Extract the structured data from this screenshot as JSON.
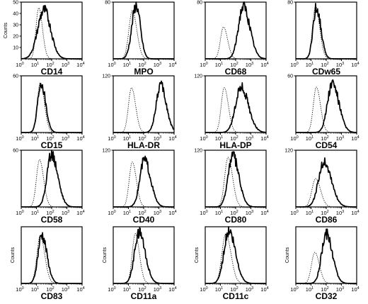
{
  "chart_data": [
    {
      "type": "histogram",
      "title": "CD14",
      "ylabel": "Counts",
      "y_ticks": [
        "10",
        "20",
        "30",
        "40",
        "50"
      ],
      "ymax": 50,
      "x_tick_exponents": [
        "0",
        "1",
        "2",
        "3",
        "4"
      ],
      "xscale": "log",
      "xlim": [
        0,
        4
      ],
      "series": [
        {
          "name": "",
          "style": "dotted",
          "peak": 1.15,
          "width": 0.18,
          "height": 45
        },
        {
          "name": "",
          "style": "solid",
          "peak": 1.5,
          "width": 0.42,
          "height": 43,
          "tail": 1.05
        }
      ]
    },
    {
      "type": "histogram",
      "title": "MPO",
      "ylabel": "",
      "y_ticks": [
        "80"
      ],
      "ymax": 80,
      "x_tick_exponents": [
        "0",
        "1",
        "2",
        "3",
        "4"
      ],
      "xscale": "log",
      "xlim": [
        0,
        4
      ],
      "series": [
        {
          "name": "",
          "style": "dotted",
          "peak": 1.25,
          "width": 0.22,
          "height": 68
        },
        {
          "name": "",
          "style": "solid",
          "peak": 1.5,
          "width": 0.28,
          "height": 75,
          "tail": 1.0
        }
      ]
    },
    {
      "type": "histogram",
      "title": "CD68",
      "ylabel": "",
      "y_ticks": [
        "80"
      ],
      "ymax": 80,
      "x_tick_exponents": [
        "0",
        "1",
        "2",
        "3",
        "4"
      ],
      "xscale": "log",
      "xlim": [
        0,
        4
      ],
      "series": [
        {
          "name": "",
          "style": "dotted",
          "peak": 1.2,
          "width": 0.2,
          "height": 45
        },
        {
          "name": "",
          "style": "solid",
          "peak": 2.5,
          "width": 0.32,
          "height": 74
        }
      ]
    },
    {
      "type": "histogram",
      "title": "CDw65",
      "ylabel": "",
      "y_ticks": [
        "80"
      ],
      "ymax": 80,
      "x_tick_exponents": [
        "0",
        "1",
        "2",
        "3",
        "4"
      ],
      "xscale": "log",
      "xlim": [
        0,
        4
      ],
      "series": [
        {
          "name": "",
          "style": "dotted",
          "peak": 1.3,
          "width": 0.2,
          "height": 74
        },
        {
          "name": "",
          "style": "solid",
          "peak": 1.35,
          "width": 0.22,
          "height": 72
        }
      ]
    },
    {
      "type": "histogram",
      "title": "CD15",
      "ylabel": "",
      "y_ticks": [
        "60"
      ],
      "ymax": 60,
      "x_tick_exponents": [
        "0",
        "1",
        "2",
        "3",
        "4"
      ],
      "xscale": "log",
      "xlim": [
        0,
        4
      ],
      "series": [
        {
          "name": "",
          "style": "dotted",
          "peak": 1.25,
          "width": 0.2,
          "height": 53
        },
        {
          "name": "",
          "style": "solid",
          "peak": 1.3,
          "width": 0.22,
          "height": 54
        }
      ]
    },
    {
      "type": "histogram",
      "title": "HLA-DR",
      "ylabel": "",
      "y_ticks": [
        "120"
      ],
      "ymax": 120,
      "x_tick_exponents": [
        "0",
        "1",
        "2",
        "3",
        "4"
      ],
      "xscale": "log",
      "xlim": [
        0,
        4
      ],
      "series": [
        {
          "name": "",
          "style": "dotted",
          "peak": 1.2,
          "width": 0.2,
          "height": 95
        },
        {
          "name": "",
          "style": "solid",
          "peak": 3.1,
          "width": 0.28,
          "height": 100
        }
      ]
    },
    {
      "type": "histogram",
      "title": "HLA-DP",
      "ylabel": "",
      "y_ticks": [
        "120"
      ],
      "ymax": 120,
      "x_tick_exponents": [
        "0",
        "1",
        "2",
        "3",
        "4"
      ],
      "xscale": "log",
      "xlim": [
        0,
        4
      ],
      "series": [
        {
          "name": "",
          "style": "dotted",
          "peak": 1.25,
          "width": 0.2,
          "height": 95
        },
        {
          "name": "",
          "style": "solid",
          "peak": 2.35,
          "width": 0.36,
          "height": 96
        }
      ]
    },
    {
      "type": "histogram",
      "title": "CD54",
      "ylabel": "",
      "y_ticks": [
        "60"
      ],
      "ymax": 60,
      "x_tick_exponents": [
        "0",
        "1",
        "2",
        "3",
        "4"
      ],
      "xscale": "log",
      "xlim": [
        0,
        4
      ],
      "series": [
        {
          "name": "",
          "style": "dotted",
          "peak": 1.35,
          "width": 0.2,
          "height": 48
        },
        {
          "name": "",
          "style": "solid",
          "peak": 2.4,
          "width": 0.32,
          "height": 52
        }
      ]
    },
    {
      "type": "histogram",
      "title": "CD58",
      "ylabel": "",
      "y_ticks": [
        "60"
      ],
      "ymax": 60,
      "x_tick_exponents": [
        "0",
        "1",
        "2",
        "3",
        "4"
      ],
      "xscale": "log",
      "xlim": [
        0,
        4
      ],
      "series": [
        {
          "name": "",
          "style": "dotted",
          "peak": 1.2,
          "width": 0.2,
          "height": 50
        },
        {
          "name": "",
          "style": "solid",
          "peak": 2.0,
          "width": 0.3,
          "height": 56
        }
      ]
    },
    {
      "type": "histogram",
      "title": "CD40",
      "ylabel": "",
      "y_ticks": [
        "120"
      ],
      "ymax": 120,
      "x_tick_exponents": [
        "0",
        "1",
        "2",
        "3",
        "4"
      ],
      "xscale": "log",
      "xlim": [
        0,
        4
      ],
      "series": [
        {
          "name": "",
          "style": "dotted",
          "peak": 1.25,
          "width": 0.2,
          "height": 95
        },
        {
          "name": "",
          "style": "solid",
          "peak": 2.05,
          "width": 0.3,
          "height": 100
        }
      ]
    },
    {
      "type": "histogram",
      "title": "CD80",
      "ylabel": "",
      "y_ticks": [
        "120"
      ],
      "ymax": 120,
      "x_tick_exponents": [
        "0",
        "1",
        "2",
        "3",
        "4"
      ],
      "xscale": "log",
      "xlim": [
        0,
        4
      ],
      "series": [
        {
          "name": "",
          "style": "dotted",
          "peak": 1.5,
          "width": 0.22,
          "height": 105
        },
        {
          "name": "",
          "style": "solid",
          "peak": 1.8,
          "width": 0.3,
          "height": 108
        }
      ]
    },
    {
      "type": "histogram",
      "title": "CD86",
      "ylabel": "",
      "y_ticks": [
        "120"
      ],
      "ymax": 120,
      "x_tick_exponents": [
        "0",
        "1",
        "2",
        "3",
        "4"
      ],
      "xscale": "log",
      "xlim": [
        0,
        4
      ],
      "series": [
        {
          "name": "",
          "style": "dotted",
          "peak": 1.3,
          "width": 0.24,
          "height": 60
        },
        {
          "name": "",
          "style": "solid",
          "peak": 1.85,
          "width": 0.36,
          "height": 95
        }
      ]
    },
    {
      "type": "histogram",
      "title": "CD83",
      "ylabel": "Counts",
      "y_ticks": [],
      "ymax": 100,
      "x_tick_exponents": [
        "0",
        "1",
        "2",
        "3",
        "4"
      ],
      "xscale": "log",
      "xlim": [
        0,
        4
      ],
      "series": [
        {
          "name": "",
          "style": "dotted",
          "peak": 1.25,
          "width": 0.22,
          "height": 84
        },
        {
          "name": "",
          "style": "solid",
          "peak": 1.35,
          "width": 0.25,
          "height": 85
        }
      ]
    },
    {
      "type": "histogram",
      "title": "CD11a",
      "ylabel": "Counts",
      "y_ticks": [],
      "ymax": 100,
      "x_tick_exponents": [
        "0",
        "1",
        "2",
        "3",
        "4"
      ],
      "xscale": "log",
      "xlim": [
        0,
        4
      ],
      "series": [
        {
          "name": "",
          "style": "dotted",
          "peak": 1.45,
          "width": 0.2,
          "height": 88
        },
        {
          "name": "",
          "style": "solid",
          "peak": 1.7,
          "width": 0.3,
          "height": 90
        }
      ]
    },
    {
      "type": "histogram",
      "title": "CD11c",
      "ylabel": "Counts",
      "y_ticks": [],
      "ymax": 100,
      "x_tick_exponents": [
        "0",
        "1",
        "2",
        "3",
        "4"
      ],
      "xscale": "log",
      "xlim": [
        0,
        4
      ],
      "series": [
        {
          "name": "",
          "style": "dotted",
          "peak": 1.35,
          "width": 0.25,
          "height": 88
        },
        {
          "name": "",
          "style": "solid",
          "peak": 1.55,
          "width": 0.32,
          "height": 92
        }
      ]
    },
    {
      "type": "histogram",
      "title": "CD32",
      "ylabel": "Counts",
      "y_ticks": [],
      "ymax": 100,
      "x_tick_exponents": [
        "0",
        "1",
        "2",
        "3",
        "4"
      ],
      "xscale": "log",
      "xlim": [
        0,
        4
      ],
      "series": [
        {
          "name": "",
          "style": "dotted",
          "peak": 1.25,
          "width": 0.22,
          "height": 55
        },
        {
          "name": "",
          "style": "solid",
          "peak": 2.0,
          "width": 0.3,
          "height": 88
        }
      ]
    }
  ]
}
